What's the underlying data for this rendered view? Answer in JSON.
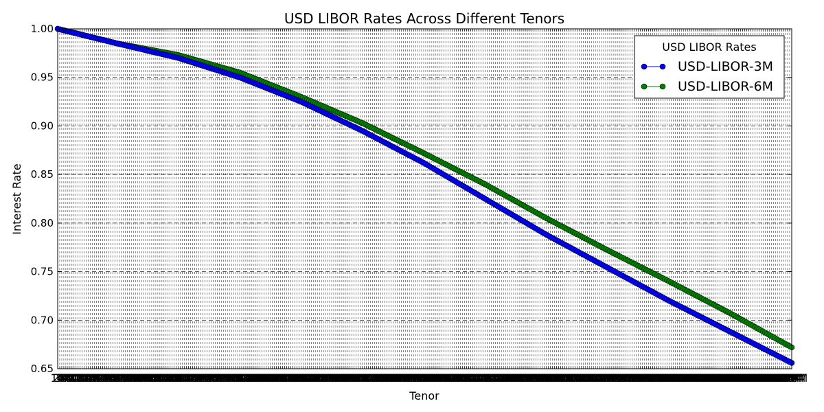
{
  "chart_data": {
    "type": "line",
    "title": "USD LIBOR Rates Across Different Tenors",
    "xlabel": "Tenor",
    "ylabel": "Interest Rate",
    "ylim": [
      0.65,
      1.0
    ],
    "yticks": [
      "0.65",
      "0.70",
      "0.75",
      "0.80",
      "0.85",
      "0.90",
      "0.95",
      "1.00"
    ],
    "grid": true,
    "legend": {
      "title": "USD LIBOR Rates",
      "placement": "top-right"
    },
    "x_count": 360,
    "x_first_label": "1M",
    "x_last_label": "360M",
    "series": [
      {
        "name": "USD-LIBOR-3M",
        "color": "#0000ff",
        "anchors": {
          "x": [
            1,
            30,
            60,
            90,
            120,
            150,
            180,
            210,
            240,
            270,
            300,
            330,
            360
          ],
          "y": [
            1.0,
            0.985,
            0.97,
            0.95,
            0.925,
            0.895,
            0.862,
            0.825,
            0.788,
            0.754,
            0.72,
            0.688,
            0.656
          ]
        }
      },
      {
        "name": "USD-LIBOR-6M",
        "color": "#007f00",
        "anchors": {
          "x": [
            1,
            30,
            60,
            90,
            120,
            150,
            180,
            210,
            240,
            270,
            300,
            330,
            360
          ],
          "y": [
            1.0,
            0.985,
            0.973,
            0.955,
            0.93,
            0.903,
            0.872,
            0.84,
            0.805,
            0.772,
            0.74,
            0.707,
            0.672
          ]
        }
      }
    ]
  }
}
